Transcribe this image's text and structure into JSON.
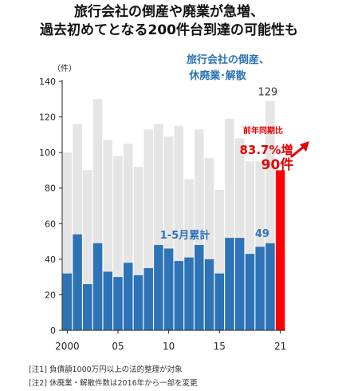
{
  "title_line1": "旅行会社の倒産や廃業が急増、",
  "title_line2": "過去初めてとなる200件台到達の可能性も",
  "notes": [
    "[注1] 負債額1000万円以上の法的整理が対象",
    "[注2] 休廃業・解散件数は2016年から一部を変更"
  ],
  "colors": {
    "total": "#e5e5e5",
    "jan_may": "#2e73b6",
    "highlight": "#ff0000",
    "total_label": "#2e73b6",
    "jan_may_label": "#2e73b6",
    "annotation": "#e60000",
    "axis": "#222222"
  },
  "chart_data": {
    "type": "bar",
    "x": [
      2000,
      2001,
      2002,
      2003,
      2004,
      2005,
      2006,
      2007,
      2008,
      2009,
      2010,
      2011,
      2012,
      2013,
      2014,
      2015,
      2016,
      2017,
      2018,
      2019,
      2020,
      2021
    ],
    "xtick_labels": [
      "2000",
      "",
      "",
      "",
      "",
      "05",
      "",
      "",
      "",
      "",
      "10",
      "",
      "",
      "",
      "",
      "15",
      "",
      "",
      "",
      "",
      "",
      "21"
    ],
    "series": [
      {
        "name": "旅行会社の倒産、休廃業･解散",
        "label_lines": [
          "旅行会社の倒産、",
          "休廃業･解散"
        ],
        "values": [
          100,
          116,
          90,
          130,
          107,
          98,
          105,
          92,
          113,
          116,
          109,
          115,
          85,
          113,
          97,
          79,
          119,
          108,
          95,
          95,
          129,
          null
        ]
      },
      {
        "name": "1-5月累計",
        "values": [
          32,
          54,
          26,
          49,
          33,
          30,
          38,
          31,
          35,
          48,
          46,
          39,
          41,
          48,
          40,
          32,
          52,
          52,
          43,
          47,
          49,
          90
        ]
      }
    ],
    "highlight_index": 21,
    "data_labels": {
      "total_last": "129",
      "jan_may_last": "49"
    },
    "annotation": {
      "line1": "前年同期比",
      "line2": "83.7%増",
      "line3": "90件"
    },
    "ylabel": "（件）",
    "ylim": [
      0,
      140
    ],
    "yticks": [
      0,
      20,
      40,
      60,
      80,
      100,
      120,
      140
    ],
    "grid": false
  }
}
